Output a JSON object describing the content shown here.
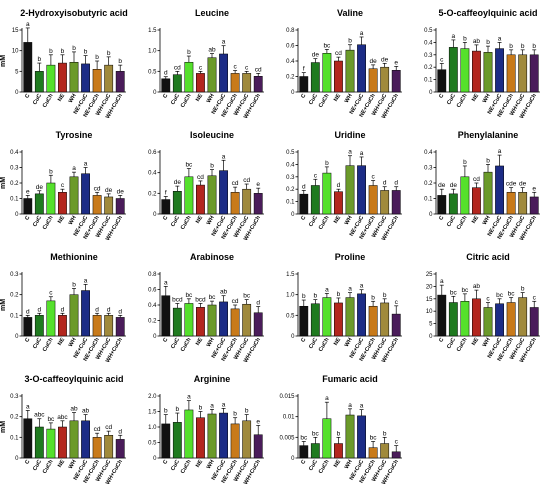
{
  "figure": {
    "colors": {
      "C": "#111111",
      "CuC": "#1f7a1f",
      "CuCh": "#55e02c",
      "NE": "#b3261e",
      "WH": "#6b9a2a",
      "NE+CuC": "#1c2c86",
      "NE+CuCh": "#c87a1a",
      "WH+CuC": "#a08a3c",
      "WH+CuCh": "#4a1c5a",
      "axis": "#000000",
      "error": "#000000"
    }
  },
  "chart_data": [
    {
      "type": "bar",
      "title": "2-Hydroxyisobutyric acid",
      "ylabel": "mM",
      "ylim": [
        0,
        15
      ],
      "yticks": [
        0,
        5,
        10,
        15
      ],
      "categories": [
        "C",
        "CuC",
        "CuCh",
        "NE",
        "WH",
        "NE+CuC",
        "NE+CuCh",
        "WH+CuC",
        "WH+CuCh"
      ],
      "values": [
        12,
        5,
        6.5,
        7,
        7.2,
        6.8,
        5.5,
        6.5,
        5
      ],
      "errors": [
        3.5,
        2,
        2.5,
        2,
        2.5,
        2,
        2,
        2,
        1.5
      ],
      "letters": [
        "a",
        "b",
        "b",
        "b",
        "b",
        "b",
        "b",
        "b",
        "b"
      ]
    },
    {
      "type": "bar",
      "title": "Leucine",
      "ylabel": "",
      "ylim": [
        0,
        1.5
      ],
      "yticks": [
        0,
        0.5,
        1.0,
        1.5
      ],
      "categories": [
        "C",
        "CuC",
        "CuCh",
        "NE",
        "WH",
        "NE+CuC",
        "NE+CuCh",
        "WH+CuC",
        "WH+CuCh"
      ],
      "values": [
        0.32,
        0.42,
        0.72,
        0.45,
        0.83,
        0.92,
        0.45,
        0.45,
        0.38
      ],
      "errors": [
        0.05,
        0.08,
        0.15,
        0.05,
        0.1,
        0.2,
        0.07,
        0.05,
        0.07
      ],
      "letters": [
        "d",
        "cd",
        "b",
        "c",
        "ab",
        "a",
        "c",
        "c",
        "cd"
      ]
    },
    {
      "type": "bar",
      "title": "Valine",
      "ylabel": "",
      "ylim": [
        0,
        0.8
      ],
      "yticks": [
        0,
        0.2,
        0.4,
        0.6,
        0.8
      ],
      "categories": [
        "C",
        "CuC",
        "CuCh",
        "NE",
        "WH",
        "NE+CuC",
        "NE+CuCh",
        "WH+CuC",
        "WH+CuCh"
      ],
      "values": [
        0.2,
        0.38,
        0.5,
        0.4,
        0.54,
        0.61,
        0.3,
        0.32,
        0.28
      ],
      "errors": [
        0.05,
        0.05,
        0.05,
        0.05,
        0.07,
        0.1,
        0.05,
        0.05,
        0.05
      ],
      "letters": [
        "f",
        "de",
        "bc",
        "cd",
        "b",
        "a",
        "de",
        "de",
        "e"
      ]
    },
    {
      "type": "bar",
      "title": "5-O-caffeoylquinic acid",
      "ylabel": "",
      "ylim": [
        0,
        0.5
      ],
      "yticks": [
        0,
        0.1,
        0.2,
        0.3,
        0.4,
        0.5
      ],
      "categories": [
        "C",
        "CuC",
        "CuCh",
        "NE",
        "WH",
        "NE+CuC",
        "NE+CuCh",
        "WH+CuC",
        "WH+CuCh"
      ],
      "values": [
        0.18,
        0.36,
        0.35,
        0.33,
        0.32,
        0.35,
        0.3,
        0.3,
        0.3
      ],
      "errors": [
        0.05,
        0.06,
        0.05,
        0.05,
        0.05,
        0.05,
        0.04,
        0.04,
        0.04
      ],
      "letters": [
        "c",
        "a",
        "b",
        "ab",
        "b",
        "a",
        "b",
        "b",
        "b"
      ]
    },
    {
      "type": "bar",
      "title": "Tyrosine",
      "ylabel": "mM",
      "ylim": [
        0,
        0.4
      ],
      "yticks": [
        0,
        0.1,
        0.2,
        0.3,
        0.4
      ],
      "categories": [
        "C",
        "CuC",
        "CuCh",
        "NE",
        "WH",
        "NE+CuC",
        "NE+CuCh",
        "WH+CuC",
        "WH+CuCh"
      ],
      "values": [
        0.1,
        0.13,
        0.2,
        0.14,
        0.24,
        0.26,
        0.12,
        0.11,
        0.1
      ],
      "errors": [
        0.02,
        0.02,
        0.05,
        0.02,
        0.03,
        0.04,
        0.02,
        0.02,
        0.02
      ],
      "letters": [
        "e",
        "de",
        "b",
        "c",
        "a",
        "a",
        "cd",
        "de",
        "de"
      ]
    },
    {
      "type": "bar",
      "title": "Isoleucine",
      "ylabel": "",
      "ylim": [
        0,
        0.6
      ],
      "yticks": [
        0,
        0.2,
        0.4,
        0.6
      ],
      "categories": [
        "C",
        "CuC",
        "CuCh",
        "NE",
        "WH",
        "NE+CuC",
        "NE+CuCh",
        "WH+CuC",
        "WH+CuCh"
      ],
      "values": [
        0.14,
        0.22,
        0.36,
        0.28,
        0.37,
        0.42,
        0.21,
        0.24,
        0.2
      ],
      "errors": [
        0.03,
        0.05,
        0.08,
        0.04,
        0.06,
        0.1,
        0.05,
        0.05,
        0.05
      ],
      "letters": [
        "f",
        "de",
        "bc",
        "cd",
        "b",
        "a",
        "cd",
        "cd",
        "e"
      ]
    },
    {
      "type": "bar",
      "title": "Uridine",
      "ylabel": "",
      "ylim": [
        0,
        0.5
      ],
      "yticks": [
        0,
        0.1,
        0.2,
        0.3,
        0.4,
        0.5
      ],
      "categories": [
        "C",
        "CuC",
        "CuCh",
        "NE",
        "WH",
        "NE+CuC",
        "NE+CuCh",
        "WH+CuC",
        "WH+CuCh"
      ],
      "values": [
        0.16,
        0.23,
        0.33,
        0.18,
        0.39,
        0.39,
        0.23,
        0.19,
        0.19
      ],
      "errors": [
        0.03,
        0.05,
        0.05,
        0.02,
        0.08,
        0.07,
        0.04,
        0.03,
        0.03
      ],
      "letters": [
        "d",
        "c",
        "b",
        "d",
        "a",
        "a",
        "c",
        "d",
        "d"
      ]
    },
    {
      "type": "bar",
      "title": "Phenylalanine",
      "ylabel": "",
      "ylim": [
        0,
        0.4
      ],
      "yticks": [
        0,
        0.1,
        0.2,
        0.3,
        0.4
      ],
      "categories": [
        "C",
        "CuC",
        "CuCh",
        "NE",
        "WH",
        "NE+CuC",
        "NE+CuCh",
        "WH+CuC",
        "WH+CuCh"
      ],
      "values": [
        0.12,
        0.13,
        0.24,
        0.17,
        0.27,
        0.31,
        0.14,
        0.14,
        0.11
      ],
      "errors": [
        0.04,
        0.03,
        0.07,
        0.03,
        0.05,
        0.07,
        0.03,
        0.03,
        0.03
      ],
      "letters": [
        "de",
        "de",
        "b",
        "cd",
        "b",
        "a",
        "cde",
        "de",
        "e"
      ]
    },
    {
      "type": "bar",
      "title": "Methionine",
      "ylabel": "mM",
      "ylim": [
        0,
        0.3
      ],
      "yticks": [
        0,
        0.1,
        0.2,
        0.3
      ],
      "categories": [
        "C",
        "CuC",
        "CuCh",
        "NE",
        "WH",
        "NE+CuC",
        "NE+CuCh",
        "WH+CuC",
        "WH+CuCh"
      ],
      "values": [
        0.09,
        0.1,
        0.17,
        0.1,
        0.2,
        0.22,
        0.1,
        0.1,
        0.09
      ],
      "errors": [
        0.01,
        0.01,
        0.02,
        0.01,
        0.03,
        0.03,
        0.01,
        0.01,
        0.01
      ],
      "letters": [
        "d",
        "d",
        "c",
        "d",
        "b",
        "a",
        "d",
        "d",
        "d"
      ]
    },
    {
      "type": "bar",
      "title": "Arabinose",
      "ylabel": "",
      "ylim": [
        0,
        0.8
      ],
      "yticks": [
        0,
        0.2,
        0.4,
        0.6,
        0.8
      ],
      "categories": [
        "C",
        "CuC",
        "CuCh",
        "NE",
        "WH",
        "NE+CuC",
        "NE+CuCh",
        "WH+CuC",
        "WH+CuCh"
      ],
      "values": [
        0.52,
        0.36,
        0.42,
        0.37,
        0.4,
        0.44,
        0.35,
        0.41,
        0.3
      ],
      "errors": [
        0.12,
        0.06,
        0.06,
        0.05,
        0.05,
        0.08,
        0.05,
        0.06,
        0.08
      ],
      "letters": [
        "a",
        "bcd",
        "bc",
        "bcd",
        "bc",
        "ab",
        "cd",
        "bc",
        "d"
      ]
    },
    {
      "type": "bar",
      "title": "Proline",
      "ylabel": "",
      "ylim": [
        0,
        1.5
      ],
      "yticks": [
        0,
        0.5,
        1.0,
        1.5
      ],
      "categories": [
        "C",
        "CuC",
        "CuCh",
        "NE",
        "WH",
        "NE+CuC",
        "NE+CuCh",
        "WH+CuC",
        "WH+CuCh"
      ],
      "values": [
        0.72,
        0.78,
        0.93,
        0.8,
        0.93,
        1.02,
        0.72,
        0.8,
        0.53
      ],
      "errors": [
        0.15,
        0.1,
        0.1,
        0.12,
        0.12,
        0.1,
        0.12,
        0.1,
        0.2
      ],
      "letters": [
        "b",
        "b",
        "a",
        "b",
        "a",
        "a",
        "b",
        "b",
        "c"
      ]
    },
    {
      "type": "bar",
      "title": "Citric acid",
      "ylabel": "",
      "ylim": [
        0,
        25
      ],
      "yticks": [
        0,
        5,
        10,
        15,
        20,
        25
      ],
      "categories": [
        "C",
        "CuC",
        "CuCh",
        "NE",
        "WH",
        "NE+CuC",
        "NE+CuCh",
        "WH+CuC",
        "WH+CuCh"
      ],
      "values": [
        16.5,
        13.5,
        14,
        15,
        11.5,
        13,
        13.5,
        15.5,
        11.5
      ],
      "errors": [
        4,
        2.5,
        3,
        3.5,
        2,
        2,
        2,
        2,
        2.5
      ],
      "letters": [
        "a",
        "bc",
        "bc",
        "ab",
        "c",
        "bc",
        "bc",
        "b",
        "c"
      ]
    },
    {
      "type": "bar",
      "title": "3-O-caffeoylquinic acid",
      "ylabel": "mM",
      "ylim": [
        0,
        0.3
      ],
      "yticks": [
        0,
        0.1,
        0.2,
        0.3
      ],
      "categories": [
        "C",
        "CuC",
        "CuCh",
        "NE",
        "WH",
        "NE+CuC",
        "NE+CuCh",
        "WH+CuC",
        "WH+CuCh"
      ],
      "values": [
        0.19,
        0.15,
        0.14,
        0.15,
        0.18,
        0.18,
        0.1,
        0.11,
        0.09
      ],
      "errors": [
        0.04,
        0.04,
        0.03,
        0.03,
        0.04,
        0.03,
        0.02,
        0.02,
        0.02
      ],
      "letters": [
        "a",
        "abc",
        "bc",
        "abc",
        "ab",
        "ab",
        "cd",
        "cd",
        "d"
      ]
    },
    {
      "type": "bar",
      "title": "Arginine",
      "ylabel": "",
      "ylim": [
        0,
        2.0
      ],
      "yticks": [
        0,
        0.5,
        1.0,
        1.5,
        2.0
      ],
      "categories": [
        "C",
        "CuC",
        "CuCh",
        "NE",
        "WH",
        "NE+CuC",
        "NE+CuCh",
        "WH+CuC",
        "WH+CuCh"
      ],
      "values": [
        1.1,
        1.15,
        1.55,
        1.3,
        1.42,
        1.45,
        1.1,
        1.2,
        0.75
      ],
      "errors": [
        0.3,
        0.3,
        0.3,
        0.2,
        0.15,
        0.15,
        0.2,
        0.2,
        0.3
      ],
      "letters": [
        "b",
        "b",
        "a",
        "b",
        "a",
        "a",
        "b",
        "b",
        "e"
      ]
    },
    {
      "type": "bar",
      "title": "Fumaric acid",
      "ylabel": "",
      "ylim": [
        0,
        0.015
      ],
      "yticks": [
        0,
        0.005,
        0.01,
        0.015
      ],
      "categories": [
        "C",
        "CuC",
        "CuCh",
        "NE",
        "WH",
        "NE+CuC",
        "NE+CuCh",
        "WH+CuC",
        "WH+CuCh"
      ],
      "values": [
        0.003,
        0.0035,
        0.0095,
        0.0035,
        0.0104,
        0.0102,
        0.0025,
        0.0035,
        0.0015
      ],
      "errors": [
        0.001,
        0.0015,
        0.004,
        0.0015,
        0.0015,
        0.0015,
        0.0015,
        0.0015,
        0.0015
      ],
      "letters": [
        "bc",
        "bc",
        "a",
        "b",
        "a",
        "a",
        "bc",
        "b",
        "c"
      ]
    }
  ]
}
